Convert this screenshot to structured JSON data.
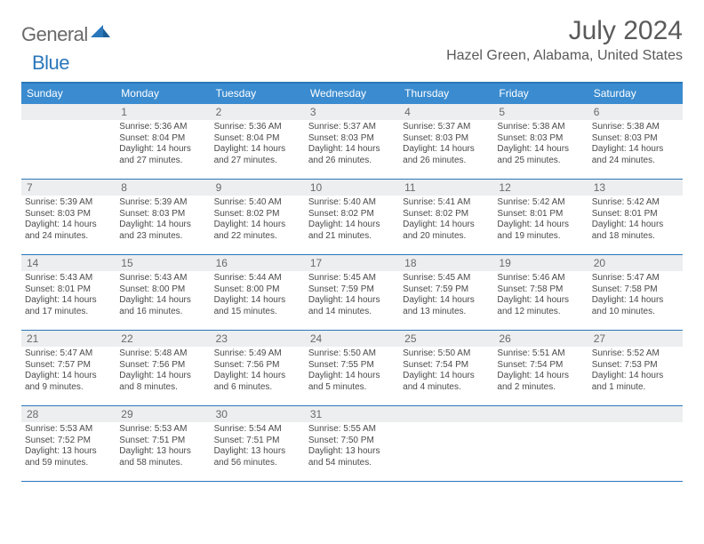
{
  "logo": {
    "word1": "General",
    "word2": "Blue"
  },
  "title": "July 2024",
  "location": "Hazel Green, Alabama, United States",
  "header_bg": "#3a8bcf",
  "accent_line": "#2a77bb",
  "band_bg": "#eceeef",
  "dow": [
    "Sunday",
    "Monday",
    "Tuesday",
    "Wednesday",
    "Thursday",
    "Friday",
    "Saturday"
  ],
  "weeks": [
    [
      {
        "blank": true
      },
      {
        "n": "1",
        "sr": "Sunrise: 5:36 AM",
        "ss": "Sunset: 8:04 PM",
        "d1": "Daylight: 14 hours",
        "d2": "and 27 minutes."
      },
      {
        "n": "2",
        "sr": "Sunrise: 5:36 AM",
        "ss": "Sunset: 8:04 PM",
        "d1": "Daylight: 14 hours",
        "d2": "and 27 minutes."
      },
      {
        "n": "3",
        "sr": "Sunrise: 5:37 AM",
        "ss": "Sunset: 8:03 PM",
        "d1": "Daylight: 14 hours",
        "d2": "and 26 minutes."
      },
      {
        "n": "4",
        "sr": "Sunrise: 5:37 AM",
        "ss": "Sunset: 8:03 PM",
        "d1": "Daylight: 14 hours",
        "d2": "and 26 minutes."
      },
      {
        "n": "5",
        "sr": "Sunrise: 5:38 AM",
        "ss": "Sunset: 8:03 PM",
        "d1": "Daylight: 14 hours",
        "d2": "and 25 minutes."
      },
      {
        "n": "6",
        "sr": "Sunrise: 5:38 AM",
        "ss": "Sunset: 8:03 PM",
        "d1": "Daylight: 14 hours",
        "d2": "and 24 minutes."
      }
    ],
    [
      {
        "n": "7",
        "sr": "Sunrise: 5:39 AM",
        "ss": "Sunset: 8:03 PM",
        "d1": "Daylight: 14 hours",
        "d2": "and 24 minutes."
      },
      {
        "n": "8",
        "sr": "Sunrise: 5:39 AM",
        "ss": "Sunset: 8:03 PM",
        "d1": "Daylight: 14 hours",
        "d2": "and 23 minutes."
      },
      {
        "n": "9",
        "sr": "Sunrise: 5:40 AM",
        "ss": "Sunset: 8:02 PM",
        "d1": "Daylight: 14 hours",
        "d2": "and 22 minutes."
      },
      {
        "n": "10",
        "sr": "Sunrise: 5:40 AM",
        "ss": "Sunset: 8:02 PM",
        "d1": "Daylight: 14 hours",
        "d2": "and 21 minutes."
      },
      {
        "n": "11",
        "sr": "Sunrise: 5:41 AM",
        "ss": "Sunset: 8:02 PM",
        "d1": "Daylight: 14 hours",
        "d2": "and 20 minutes."
      },
      {
        "n": "12",
        "sr": "Sunrise: 5:42 AM",
        "ss": "Sunset: 8:01 PM",
        "d1": "Daylight: 14 hours",
        "d2": "and 19 minutes."
      },
      {
        "n": "13",
        "sr": "Sunrise: 5:42 AM",
        "ss": "Sunset: 8:01 PM",
        "d1": "Daylight: 14 hours",
        "d2": "and 18 minutes."
      }
    ],
    [
      {
        "n": "14",
        "sr": "Sunrise: 5:43 AM",
        "ss": "Sunset: 8:01 PM",
        "d1": "Daylight: 14 hours",
        "d2": "and 17 minutes."
      },
      {
        "n": "15",
        "sr": "Sunrise: 5:43 AM",
        "ss": "Sunset: 8:00 PM",
        "d1": "Daylight: 14 hours",
        "d2": "and 16 minutes."
      },
      {
        "n": "16",
        "sr": "Sunrise: 5:44 AM",
        "ss": "Sunset: 8:00 PM",
        "d1": "Daylight: 14 hours",
        "d2": "and 15 minutes."
      },
      {
        "n": "17",
        "sr": "Sunrise: 5:45 AM",
        "ss": "Sunset: 7:59 PM",
        "d1": "Daylight: 14 hours",
        "d2": "and 14 minutes."
      },
      {
        "n": "18",
        "sr": "Sunrise: 5:45 AM",
        "ss": "Sunset: 7:59 PM",
        "d1": "Daylight: 14 hours",
        "d2": "and 13 minutes."
      },
      {
        "n": "19",
        "sr": "Sunrise: 5:46 AM",
        "ss": "Sunset: 7:58 PM",
        "d1": "Daylight: 14 hours",
        "d2": "and 12 minutes."
      },
      {
        "n": "20",
        "sr": "Sunrise: 5:47 AM",
        "ss": "Sunset: 7:58 PM",
        "d1": "Daylight: 14 hours",
        "d2": "and 10 minutes."
      }
    ],
    [
      {
        "n": "21",
        "sr": "Sunrise: 5:47 AM",
        "ss": "Sunset: 7:57 PM",
        "d1": "Daylight: 14 hours",
        "d2": "and 9 minutes."
      },
      {
        "n": "22",
        "sr": "Sunrise: 5:48 AM",
        "ss": "Sunset: 7:56 PM",
        "d1": "Daylight: 14 hours",
        "d2": "and 8 minutes."
      },
      {
        "n": "23",
        "sr": "Sunrise: 5:49 AM",
        "ss": "Sunset: 7:56 PM",
        "d1": "Daylight: 14 hours",
        "d2": "and 6 minutes."
      },
      {
        "n": "24",
        "sr": "Sunrise: 5:50 AM",
        "ss": "Sunset: 7:55 PM",
        "d1": "Daylight: 14 hours",
        "d2": "and 5 minutes."
      },
      {
        "n": "25",
        "sr": "Sunrise: 5:50 AM",
        "ss": "Sunset: 7:54 PM",
        "d1": "Daylight: 14 hours",
        "d2": "and 4 minutes."
      },
      {
        "n": "26",
        "sr": "Sunrise: 5:51 AM",
        "ss": "Sunset: 7:54 PM",
        "d1": "Daylight: 14 hours",
        "d2": "and 2 minutes."
      },
      {
        "n": "27",
        "sr": "Sunrise: 5:52 AM",
        "ss": "Sunset: 7:53 PM",
        "d1": "Daylight: 14 hours",
        "d2": "and 1 minute."
      }
    ],
    [
      {
        "n": "28",
        "sr": "Sunrise: 5:53 AM",
        "ss": "Sunset: 7:52 PM",
        "d1": "Daylight: 13 hours",
        "d2": "and 59 minutes."
      },
      {
        "n": "29",
        "sr": "Sunrise: 5:53 AM",
        "ss": "Sunset: 7:51 PM",
        "d1": "Daylight: 13 hours",
        "d2": "and 58 minutes."
      },
      {
        "n": "30",
        "sr": "Sunrise: 5:54 AM",
        "ss": "Sunset: 7:51 PM",
        "d1": "Daylight: 13 hours",
        "d2": "and 56 minutes."
      },
      {
        "n": "31",
        "sr": "Sunrise: 5:55 AM",
        "ss": "Sunset: 7:50 PM",
        "d1": "Daylight: 13 hours",
        "d2": "and 54 minutes."
      },
      {
        "blank": true
      },
      {
        "blank": true
      },
      {
        "blank": true
      }
    ]
  ]
}
